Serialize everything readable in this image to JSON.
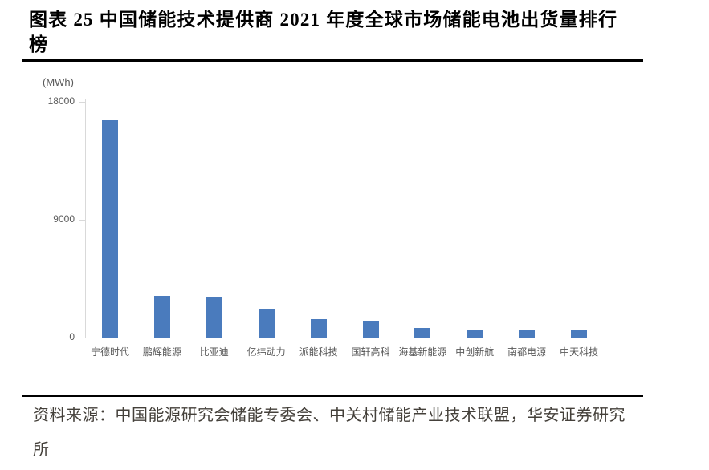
{
  "document": {
    "title_lines": [
      "图表 25 中国储能技术提供商 2021 年度全球市场储能电池出货量排行",
      "榜"
    ],
    "source_lines": [
      "资料来源：中国能源研究会储能专委会、中关村储能产业技术联盟，华安证券研究",
      "所"
    ]
  },
  "chart_data": {
    "type": "bar",
    "title": "中国储能技术提供商2021年度全球市场储能电池出货量排行榜",
    "unit_label": "(MWh)",
    "ylabel": "MWh",
    "xlabel": "",
    "categories": [
      "宁德时代",
      "鹏辉能源",
      "比亚迪",
      "亿纬动力",
      "派能科技",
      "国轩高科",
      "海基新能源",
      "中创新航",
      "南都电源",
      "中天科技"
    ],
    "values": [
      16600,
      3200,
      3100,
      2200,
      1400,
      1300,
      750,
      600,
      550,
      550
    ],
    "yticks": [
      0,
      9000,
      18000
    ],
    "ylim": [
      0,
      18000
    ],
    "grid": false,
    "legend": "none",
    "bar_color": "#4a7bbd",
    "axis_color": "#d9d9d9",
    "tick_label_color": "#595959"
  }
}
